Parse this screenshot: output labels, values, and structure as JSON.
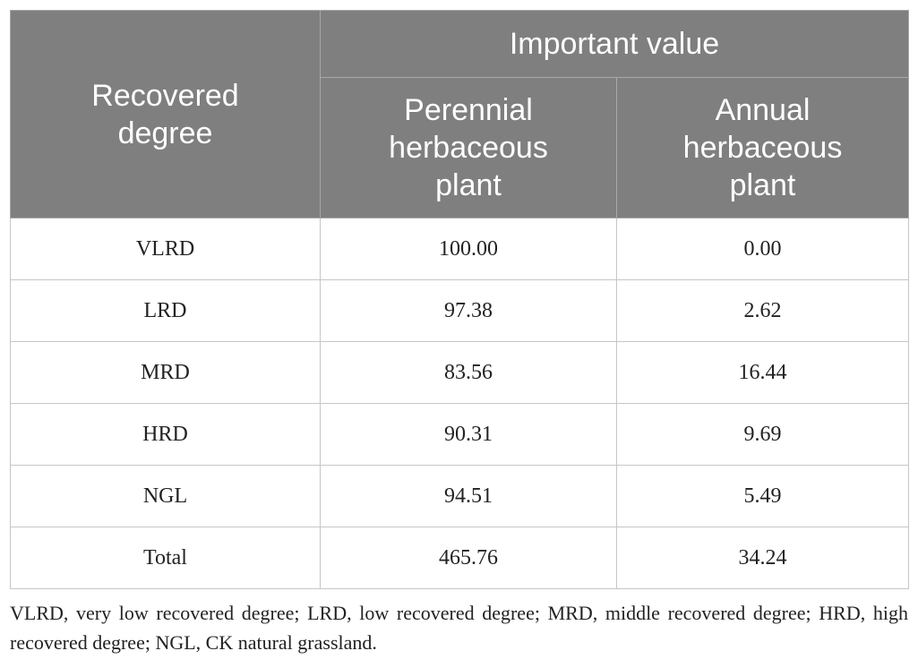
{
  "table": {
    "headers": {
      "row_label": [
        "Recovered",
        "degree"
      ],
      "group": "Important value",
      "col1": [
        "Perennial",
        "herbaceous",
        "plant"
      ],
      "col2": [
        "Annual",
        "herbaceous",
        "plant"
      ]
    },
    "rows": [
      {
        "degree": "VLRD",
        "perennial": "100.00",
        "annual": "0.00"
      },
      {
        "degree": "LRD",
        "perennial": "97.38",
        "annual": "2.62"
      },
      {
        "degree": "MRD",
        "perennial": "83.56",
        "annual": "16.44"
      },
      {
        "degree": "HRD",
        "perennial": "90.31",
        "annual": "9.69"
      },
      {
        "degree": "NGL",
        "perennial": "94.51",
        "annual": "5.49"
      },
      {
        "degree": "Total",
        "perennial": "465.76",
        "annual": "34.24"
      }
    ]
  },
  "footnote": "VLRD, very low recovered degree; LRD, low recovered degree; MRD, middle recovered degree; HRD, high recovered degree; NGL, CK natural grassland.",
  "colors": {
    "header_bg": "#7f7f7f",
    "header_text": "#ffffff",
    "border": "#c6c6c6",
    "body_text": "#222222"
  }
}
